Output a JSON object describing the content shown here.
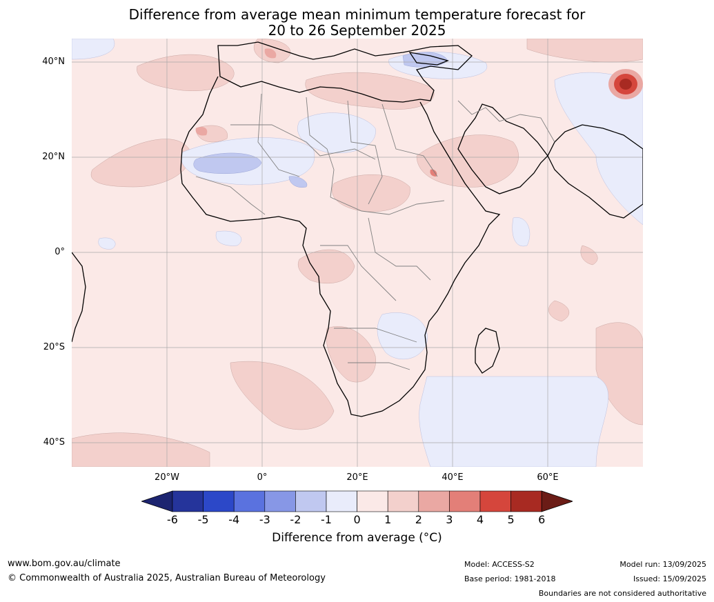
{
  "title": {
    "line1": "Difference from average mean minimum temperature forecast for",
    "line2": "20 to 26 September 2025"
  },
  "map": {
    "lat_labels": [
      "40°N",
      "20°N",
      "0°",
      "20°S",
      "40°S"
    ],
    "lon_labels": [
      "20°W",
      "0°",
      "20°E",
      "40°E",
      "60°E"
    ]
  },
  "colorbar": {
    "ticks": [
      "-6",
      "-5",
      "-4",
      "-3",
      "-2",
      "-1",
      "0",
      "1",
      "2",
      "3",
      "4",
      "5",
      "6"
    ],
    "colors": [
      "#25349b",
      "#2c48c8",
      "#5a72df",
      "#8797e6",
      "#c0c8f0",
      "#e9ecfb",
      "#fbe9e7",
      "#f3d0cc",
      "#eaa8a3",
      "#e37f78",
      "#d5463c",
      "#a82a22"
    ],
    "extend_low_color": "#1c2470",
    "extend_high_color": "#6b1c16",
    "label": "Difference from average (°C)"
  },
  "footer": {
    "website": "www.bom.gov.au/climate",
    "copyright": "© Commonwealth of Australia 2025, Australian Bureau of Meteorology",
    "model": "Model: ACCESS-S2",
    "base_period": "Base period: 1981-2018",
    "model_run": "Model run: 13/09/2025",
    "issued": "Issued: 15/09/2025",
    "disclaimer": "Boundaries are not considered authoritative"
  }
}
